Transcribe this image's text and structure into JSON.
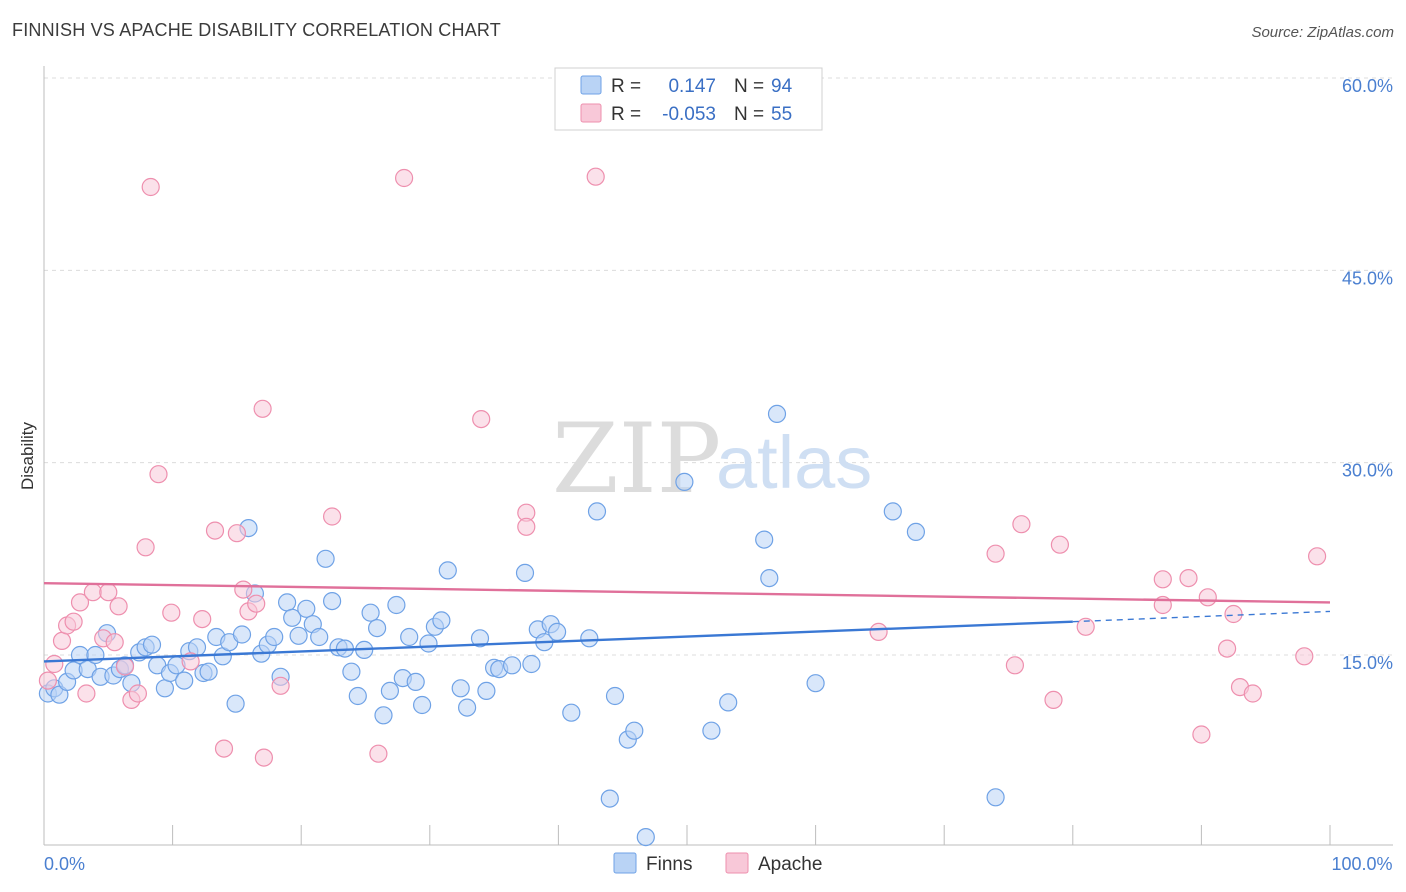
{
  "header": {
    "title": "FINNISH VS APACHE DISABILITY CORRELATION CHART",
    "source": "Source: ZipAtlas.com"
  },
  "watermark": {
    "zip": "ZIP",
    "atlas": "atlas"
  },
  "legend": {
    "rows": [
      {
        "r_label": "R =",
        "r_value": "0.147",
        "n_label": "N =",
        "n_value": "94",
        "color": "#6fa2e6",
        "fill": "#b9d3f5"
      },
      {
        "r_label": "R =",
        "r_value": "-0.053",
        "n_label": "N =",
        "n_value": "55",
        "color": "#ee8fae",
        "fill": "#f8c8d8"
      }
    ]
  },
  "bottom_legend": [
    {
      "label": "Finns",
      "fill": "#b9d3f5",
      "stroke": "#6fa2e6"
    },
    {
      "label": "Apache",
      "fill": "#f8c8d8",
      "stroke": "#ee8fae"
    }
  ],
  "chart_data": {
    "type": "scatter",
    "title": "FINNISH VS APACHE DISABILITY CORRELATION CHART",
    "ylabel": "Disability",
    "xlabel": "",
    "xlim": [
      0,
      100
    ],
    "ylim": [
      0,
      63
    ],
    "x_tick_labels": [
      {
        "value": 0,
        "label": "0.0%"
      },
      {
        "value": 100,
        "label": "100.0%"
      }
    ],
    "y_tick_labels": [
      {
        "value": 15,
        "label": "15.0%"
      },
      {
        "value": 30,
        "label": "30.0%"
      },
      {
        "value": 45,
        "label": "45.0%"
      },
      {
        "value": 60,
        "label": "60.0%"
      }
    ],
    "grid": "horizontal-dashed",
    "legend_position": "top-center",
    "series": [
      {
        "name": "Finns",
        "color": "#3a78d4",
        "fill": "#b9d3f5",
        "stroke": "#6fa2e6",
        "trend": {
          "x0": 0,
          "y0": 14.5,
          "x1": 80,
          "y1": 17.6,
          "dash_to": 100,
          "dash_y": 18.4
        },
        "points": [
          [
            0.3,
            12.0
          ],
          [
            0.8,
            12.4
          ],
          [
            1.2,
            11.9
          ],
          [
            1.8,
            12.9
          ],
          [
            2.3,
            13.8
          ],
          [
            2.8,
            15.0
          ],
          [
            3.4,
            13.9
          ],
          [
            4.0,
            15.0
          ],
          [
            4.4,
            13.3
          ],
          [
            4.9,
            16.7
          ],
          [
            5.4,
            13.4
          ],
          [
            5.9,
            13.9
          ],
          [
            6.3,
            14.2
          ],
          [
            6.8,
            12.8
          ],
          [
            7.4,
            15.2
          ],
          [
            7.9,
            15.6
          ],
          [
            8.4,
            15.8
          ],
          [
            8.8,
            14.2
          ],
          [
            9.4,
            12.4
          ],
          [
            9.8,
            13.6
          ],
          [
            10.3,
            14.2
          ],
          [
            10.9,
            13.0
          ],
          [
            11.3,
            15.3
          ],
          [
            11.9,
            15.6
          ],
          [
            12.4,
            13.6
          ],
          [
            12.8,
            13.7
          ],
          [
            13.4,
            16.4
          ],
          [
            13.9,
            14.9
          ],
          [
            14.4,
            16.0
          ],
          [
            14.9,
            11.2
          ],
          [
            15.4,
            16.6
          ],
          [
            15.9,
            24.9
          ],
          [
            16.4,
            19.8
          ],
          [
            16.9,
            15.1
          ],
          [
            17.4,
            15.8
          ],
          [
            17.9,
            16.4
          ],
          [
            18.4,
            13.3
          ],
          [
            18.9,
            19.1
          ],
          [
            19.3,
            17.9
          ],
          [
            19.8,
            16.5
          ],
          [
            20.4,
            18.6
          ],
          [
            20.9,
            17.4
          ],
          [
            21.4,
            16.4
          ],
          [
            21.9,
            22.5
          ],
          [
            22.4,
            19.2
          ],
          [
            22.9,
            15.6
          ],
          [
            23.4,
            15.5
          ],
          [
            23.9,
            13.7
          ],
          [
            24.4,
            11.8
          ],
          [
            24.9,
            15.4
          ],
          [
            25.4,
            18.3
          ],
          [
            25.9,
            17.1
          ],
          [
            26.4,
            10.3
          ],
          [
            26.9,
            12.2
          ],
          [
            27.4,
            18.9
          ],
          [
            27.9,
            13.2
          ],
          [
            28.4,
            16.4
          ],
          [
            28.9,
            12.9
          ],
          [
            29.4,
            11.1
          ],
          [
            29.9,
            15.9
          ],
          [
            30.4,
            17.2
          ],
          [
            30.9,
            17.7
          ],
          [
            31.4,
            21.6
          ],
          [
            32.4,
            12.4
          ],
          [
            32.9,
            10.9
          ],
          [
            33.9,
            16.3
          ],
          [
            34.4,
            12.2
          ],
          [
            35.0,
            14.0
          ],
          [
            35.4,
            13.9
          ],
          [
            36.4,
            14.2
          ],
          [
            37.4,
            21.4
          ],
          [
            37.9,
            14.3
          ],
          [
            38.4,
            17.0
          ],
          [
            38.9,
            16.0
          ],
          [
            39.4,
            17.4
          ],
          [
            39.9,
            16.8
          ],
          [
            41.0,
            10.5
          ],
          [
            42.4,
            16.3
          ],
          [
            43.0,
            26.2
          ],
          [
            44.4,
            11.8
          ],
          [
            45.4,
            8.4
          ],
          [
            45.9,
            9.1
          ],
          [
            46.8,
            0.8
          ],
          [
            49.8,
            28.5
          ],
          [
            51.9,
            9.1
          ],
          [
            53.2,
            11.3
          ],
          [
            56.0,
            24.0
          ],
          [
            56.4,
            21.0
          ],
          [
            57.0,
            33.8
          ],
          [
            60.0,
            12.8
          ],
          [
            66.0,
            26.2
          ],
          [
            67.8,
            24.6
          ],
          [
            74.0,
            3.9
          ],
          [
            44.0,
            3.8
          ]
        ]
      },
      {
        "name": "Apache",
        "color": "#e0709a",
        "fill": "#f8c8d8",
        "stroke": "#ee8fae",
        "trend": {
          "x0": 0,
          "y0": 20.6,
          "x1": 100,
          "y1": 19.1
        },
        "points": [
          [
            0.3,
            13.0
          ],
          [
            0.8,
            14.3
          ],
          [
            1.4,
            16.1
          ],
          [
            1.8,
            17.3
          ],
          [
            2.3,
            17.6
          ],
          [
            2.8,
            19.1
          ],
          [
            3.3,
            12.0
          ],
          [
            3.8,
            19.9
          ],
          [
            4.6,
            16.3
          ],
          [
            5.0,
            19.9
          ],
          [
            5.5,
            16.0
          ],
          [
            5.8,
            18.8
          ],
          [
            6.3,
            14.1
          ],
          [
            6.8,
            11.5
          ],
          [
            7.3,
            12.0
          ],
          [
            7.9,
            23.4
          ],
          [
            8.3,
            51.5
          ],
          [
            8.9,
            29.1
          ],
          [
            9.9,
            18.3
          ],
          [
            11.4,
            14.5
          ],
          [
            12.3,
            17.8
          ],
          [
            13.3,
            24.7
          ],
          [
            14.0,
            7.7
          ],
          [
            15.0,
            24.5
          ],
          [
            15.5,
            20.1
          ],
          [
            15.9,
            18.4
          ],
          [
            16.5,
            19.0
          ],
          [
            17.0,
            34.2
          ],
          [
            17.1,
            7.0
          ],
          [
            18.4,
            12.6
          ],
          [
            22.4,
            25.8
          ],
          [
            26.0,
            7.3
          ],
          [
            28.0,
            52.2
          ],
          [
            34.0,
            33.4
          ],
          [
            37.5,
            26.1
          ],
          [
            37.5,
            25.0
          ],
          [
            42.9,
            52.3
          ],
          [
            64.9,
            16.8
          ],
          [
            74.0,
            22.9
          ],
          [
            75.5,
            14.2
          ],
          [
            76.0,
            25.2
          ],
          [
            78.5,
            11.5
          ],
          [
            79.0,
            23.6
          ],
          [
            81.0,
            17.2
          ],
          [
            87.0,
            20.9
          ],
          [
            87.0,
            18.9
          ],
          [
            89.0,
            21.0
          ],
          [
            90.0,
            8.8
          ],
          [
            90.5,
            19.5
          ],
          [
            92.0,
            15.5
          ],
          [
            92.5,
            18.2
          ],
          [
            93.0,
            12.5
          ],
          [
            94.0,
            12.0
          ],
          [
            98.0,
            14.9
          ],
          [
            99.0,
            22.7
          ]
        ]
      }
    ]
  }
}
